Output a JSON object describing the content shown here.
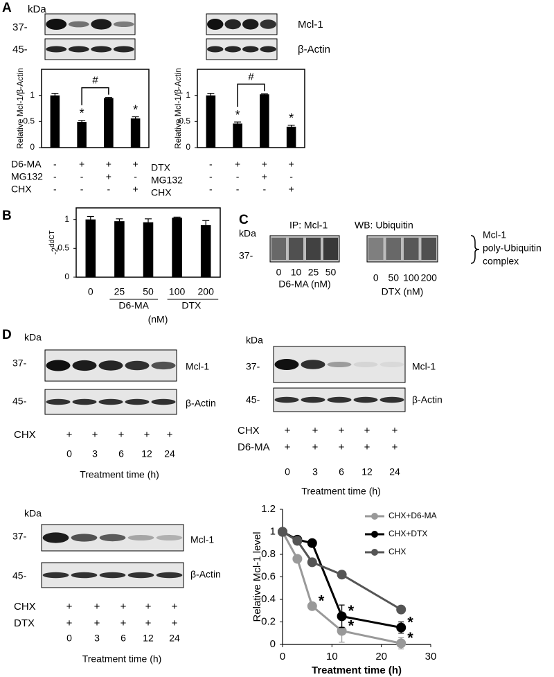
{
  "panel_labels": [
    "A",
    "B",
    "C",
    "D"
  ],
  "blots_a": [
    {
      "kda": "kDa",
      "markers": [
        "37-",
        "45-"
      ]
    },
    {
      "proteins": [
        "Mcl-1",
        "β-Actin"
      ]
    }
  ],
  "blot_c": {
    "kda": "kDa",
    "marker": "37-",
    "ip": "IP: Mcl-1",
    "wb": "WB: Ubiquitin",
    "groups": [
      {
        "lanes": [
          "0",
          "10",
          "25",
          "50"
        ],
        "label": "D6-MA (nM)"
      },
      {
        "lanes": [
          "0",
          "50",
          "100",
          "200"
        ],
        "label": "DTX (nM)"
      }
    ],
    "complex": [
      "Mcl-1",
      "poly-Ubiquitin",
      "complex"
    ]
  },
  "blots_d": [
    {
      "kda": "kDa",
      "markers": [
        "37-",
        "45-"
      ],
      "proteins": [
        "Mcl-1",
        "β-Actin"
      ],
      "treatments": [
        {
          "name": "CHX",
          "signs": [
            "+",
            "+",
            "+",
            "+",
            "+"
          ]
        }
      ],
      "times": [
        "0",
        "3",
        "6",
        "12",
        "24"
      ],
      "time_label": "Treatment time (h)"
    },
    {
      "kda": "kDa",
      "markers": [
        "37-",
        "45-"
      ],
      "proteins": [
        "Mcl-1",
        "β-Actin"
      ],
      "treatments": [
        {
          "name": "CHX",
          "signs": [
            "+",
            "+",
            "+",
            "+",
            "+"
          ]
        },
        {
          "name": "D6-MA",
          "signs": [
            "+",
            "+",
            "+",
            "+",
            "+"
          ]
        }
      ],
      "times": [
        "0",
        "3",
        "6",
        "12",
        "24"
      ],
      "time_label": "Treatment time (h)"
    },
    {
      "kda": "kDa",
      "markers": [
        "37-",
        "45-"
      ],
      "proteins": [
        "Mcl-1",
        "β-Actin"
      ],
      "treatments": [
        {
          "name": "CHX",
          "signs": [
            "+",
            "+",
            "+",
            "+",
            "+"
          ]
        },
        {
          "name": "DTX",
          "signs": [
            "+",
            "+",
            "+",
            "+",
            "+"
          ]
        }
      ],
      "times": [
        "0",
        "3",
        "6",
        "12",
        "24"
      ],
      "time_label": "Treatment time (h)"
    }
  ],
  "chart_data": [
    {
      "type": "bar",
      "ylabel": "Relative Mcl-1/β-Actin",
      "values": [
        1.0,
        0.49,
        0.95,
        0.56
      ],
      "errors": [
        0.04,
        0.03,
        0.01,
        0.03
      ],
      "significance": [
        null,
        "*",
        null,
        "*"
      ],
      "comparison_label": "#",
      "color": "#000000",
      "ylim": [
        0,
        1.5
      ],
      "yticks": [
        0,
        0.5,
        1
      ],
      "treatments": [
        {
          "name": "D6-MA",
          "signs": [
            "-",
            "+",
            "+",
            "+"
          ]
        },
        {
          "name": "MG132",
          "signs": [
            "-",
            "-",
            "+",
            "-"
          ]
        },
        {
          "name": "CHX",
          "signs": [
            "-",
            "-",
            "-",
            "+"
          ]
        }
      ]
    },
    {
      "type": "bar",
      "ylabel": "Relative Mcl-1/β-Actin",
      "values": [
        1.0,
        0.46,
        1.02,
        0.4
      ],
      "errors": [
        0.04,
        0.03,
        0.01,
        0.03
      ],
      "significance": [
        null,
        "*",
        null,
        "*"
      ],
      "comparison_label": "#",
      "color": "#000000",
      "ylim": [
        0,
        1.5
      ],
      "yticks": [
        0,
        0.5,
        1
      ],
      "treatments": [
        {
          "name": "DTX",
          "signs": [
            "-",
            "+",
            "+",
            "+"
          ]
        },
        {
          "name": "MG132",
          "signs": [
            "-",
            "-",
            "+",
            "-"
          ]
        },
        {
          "name": "CHX",
          "signs": [
            "-",
            "-",
            "-",
            "+"
          ]
        }
      ]
    },
    {
      "type": "bar",
      "ylabel_base": "-2",
      "ylabel_sup": "ddCT",
      "categories": [
        "0",
        "25",
        "50",
        "100",
        "200"
      ],
      "values": [
        1.0,
        0.97,
        0.95,
        1.03,
        0.9
      ],
      "errors": [
        0.05,
        0.04,
        0.06,
        0.01,
        0.08
      ],
      "color": "#000000",
      "ylim": [
        0,
        1.2
      ],
      "yticks": [
        0,
        0.5,
        1
      ],
      "groups": [
        "D6-MA",
        "DTX"
      ],
      "unit": "(nM)"
    },
    {
      "type": "line",
      "xlabel": "Treatment time (h)",
      "ylabel": "Relative Mcl-1 level",
      "x": [
        0,
        3,
        6,
        12,
        24
      ],
      "xlim": [
        0,
        30
      ],
      "xticks": [
        0,
        10,
        20,
        30
      ],
      "ylim": [
        0,
        1.2
      ],
      "yticks": [
        0,
        0.2,
        0.4,
        0.6,
        0.8,
        1,
        1.2
      ],
      "legend": "top-right",
      "series": [
        {
          "name": "CHX+D6-MA",
          "color": "#999999",
          "values": [
            1.0,
            0.76,
            0.34,
            0.12,
            0.01
          ],
          "errors": [
            0.01,
            0.02,
            0.02,
            0.1,
            0.05
          ],
          "significance": [
            null,
            null,
            "*",
            "*",
            "*"
          ]
        },
        {
          "name": "CHX+DTX",
          "color": "#000000",
          "values": [
            1.0,
            0.93,
            0.9,
            0.25,
            0.15
          ],
          "errors": [
            0.01,
            0.02,
            0.02,
            0.1,
            0.05
          ],
          "significance": [
            null,
            null,
            null,
            "*",
            "*"
          ]
        },
        {
          "name": "CHX",
          "color": "#555555",
          "values": [
            1.0,
            0.92,
            0.73,
            0.62,
            0.31
          ],
          "errors": [
            0.01,
            0.02,
            0.02,
            0.02,
            0.03
          ],
          "significance": [
            null,
            null,
            null,
            null,
            null
          ]
        }
      ]
    }
  ]
}
